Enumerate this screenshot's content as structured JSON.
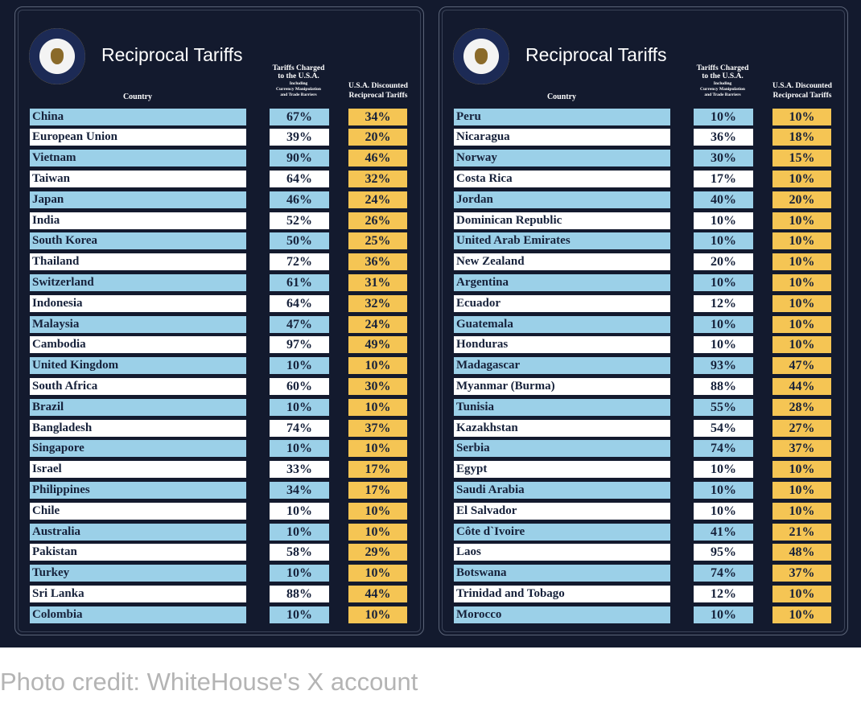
{
  "panels": [
    {
      "title": "Reciprocal Tariffs",
      "headers": {
        "country": "Country",
        "charged": [
          "Tariffs Charged",
          "to the U.S.A."
        ],
        "charged_note": [
          "Including",
          "Currency Manipulation",
          "and Trade Barriers"
        ],
        "discounted": [
          "U.S.A. Discounted",
          "Reciprocal Tariffs"
        ]
      },
      "rows": [
        [
          "China",
          "67%",
          "34%"
        ],
        [
          "European Union",
          "39%",
          "20%"
        ],
        [
          "Vietnam",
          "90%",
          "46%"
        ],
        [
          "Taiwan",
          "64%",
          "32%"
        ],
        [
          "Japan",
          "46%",
          "24%"
        ],
        [
          "India",
          "52%",
          "26%"
        ],
        [
          "South Korea",
          "50%",
          "25%"
        ],
        [
          "Thailand",
          "72%",
          "36%"
        ],
        [
          "Switzerland",
          "61%",
          "31%"
        ],
        [
          "Indonesia",
          "64%",
          "32%"
        ],
        [
          "Malaysia",
          "47%",
          "24%"
        ],
        [
          "Cambodia",
          "97%",
          "49%"
        ],
        [
          "United Kingdom",
          "10%",
          "10%"
        ],
        [
          "South Africa",
          "60%",
          "30%"
        ],
        [
          "Brazil",
          "10%",
          "10%"
        ],
        [
          "Bangladesh",
          "74%",
          "37%"
        ],
        [
          "Singapore",
          "10%",
          "10%"
        ],
        [
          "Israel",
          "33%",
          "17%"
        ],
        [
          "Philippines",
          "34%",
          "17%"
        ],
        [
          "Chile",
          "10%",
          "10%"
        ],
        [
          "Australia",
          "10%",
          "10%"
        ],
        [
          "Pakistan",
          "58%",
          "29%"
        ],
        [
          "Turkey",
          "10%",
          "10%"
        ],
        [
          "Sri Lanka",
          "88%",
          "44%"
        ],
        [
          "Colombia",
          "10%",
          "10%"
        ]
      ]
    },
    {
      "title": "Reciprocal Tariffs",
      "headers": {
        "country": "Country",
        "charged": [
          "Tariffs Charged",
          "to the U.S.A."
        ],
        "charged_note": [
          "Including",
          "Currency Manipulation",
          "and Trade Barriers"
        ],
        "discounted": [
          "U.S.A. Discounted",
          "Reciprocal Tariffs"
        ]
      },
      "rows": [
        [
          "Peru",
          "10%",
          "10%"
        ],
        [
          "Nicaragua",
          "36%",
          "18%"
        ],
        [
          "Norway",
          "30%",
          "15%"
        ],
        [
          "Costa Rica",
          "17%",
          "10%"
        ],
        [
          "Jordan",
          "40%",
          "20%"
        ],
        [
          "Dominican Republic",
          "10%",
          "10%"
        ],
        [
          "United Arab Emirates",
          "10%",
          "10%"
        ],
        [
          "New Zealand",
          "20%",
          "10%"
        ],
        [
          "Argentina",
          "10%",
          "10%"
        ],
        [
          "Ecuador",
          "12%",
          "10%"
        ],
        [
          "Guatemala",
          "10%",
          "10%"
        ],
        [
          "Honduras",
          "10%",
          "10%"
        ],
        [
          "Madagascar",
          "93%",
          "47%"
        ],
        [
          "Myanmar (Burma)",
          "88%",
          "44%"
        ],
        [
          "Tunisia",
          "55%",
          "28%"
        ],
        [
          "Kazakhstan",
          "54%",
          "27%"
        ],
        [
          "Serbia",
          "74%",
          "37%"
        ],
        [
          "Egypt",
          "10%",
          "10%"
        ],
        [
          "Saudi Arabia",
          "10%",
          "10%"
        ],
        [
          "El Salvador",
          "10%",
          "10%"
        ],
        [
          "Côte d`Ivoire",
          "41%",
          "21%"
        ],
        [
          "Laos",
          "95%",
          "48%"
        ],
        [
          "Botswana",
          "74%",
          "37%"
        ],
        [
          "Trinidad and Tobago",
          "12%",
          "10%"
        ],
        [
          "Morocco",
          "10%",
          "10%"
        ]
      ]
    }
  ],
  "caption": "Photo credit: WhiteHouse's X account"
}
